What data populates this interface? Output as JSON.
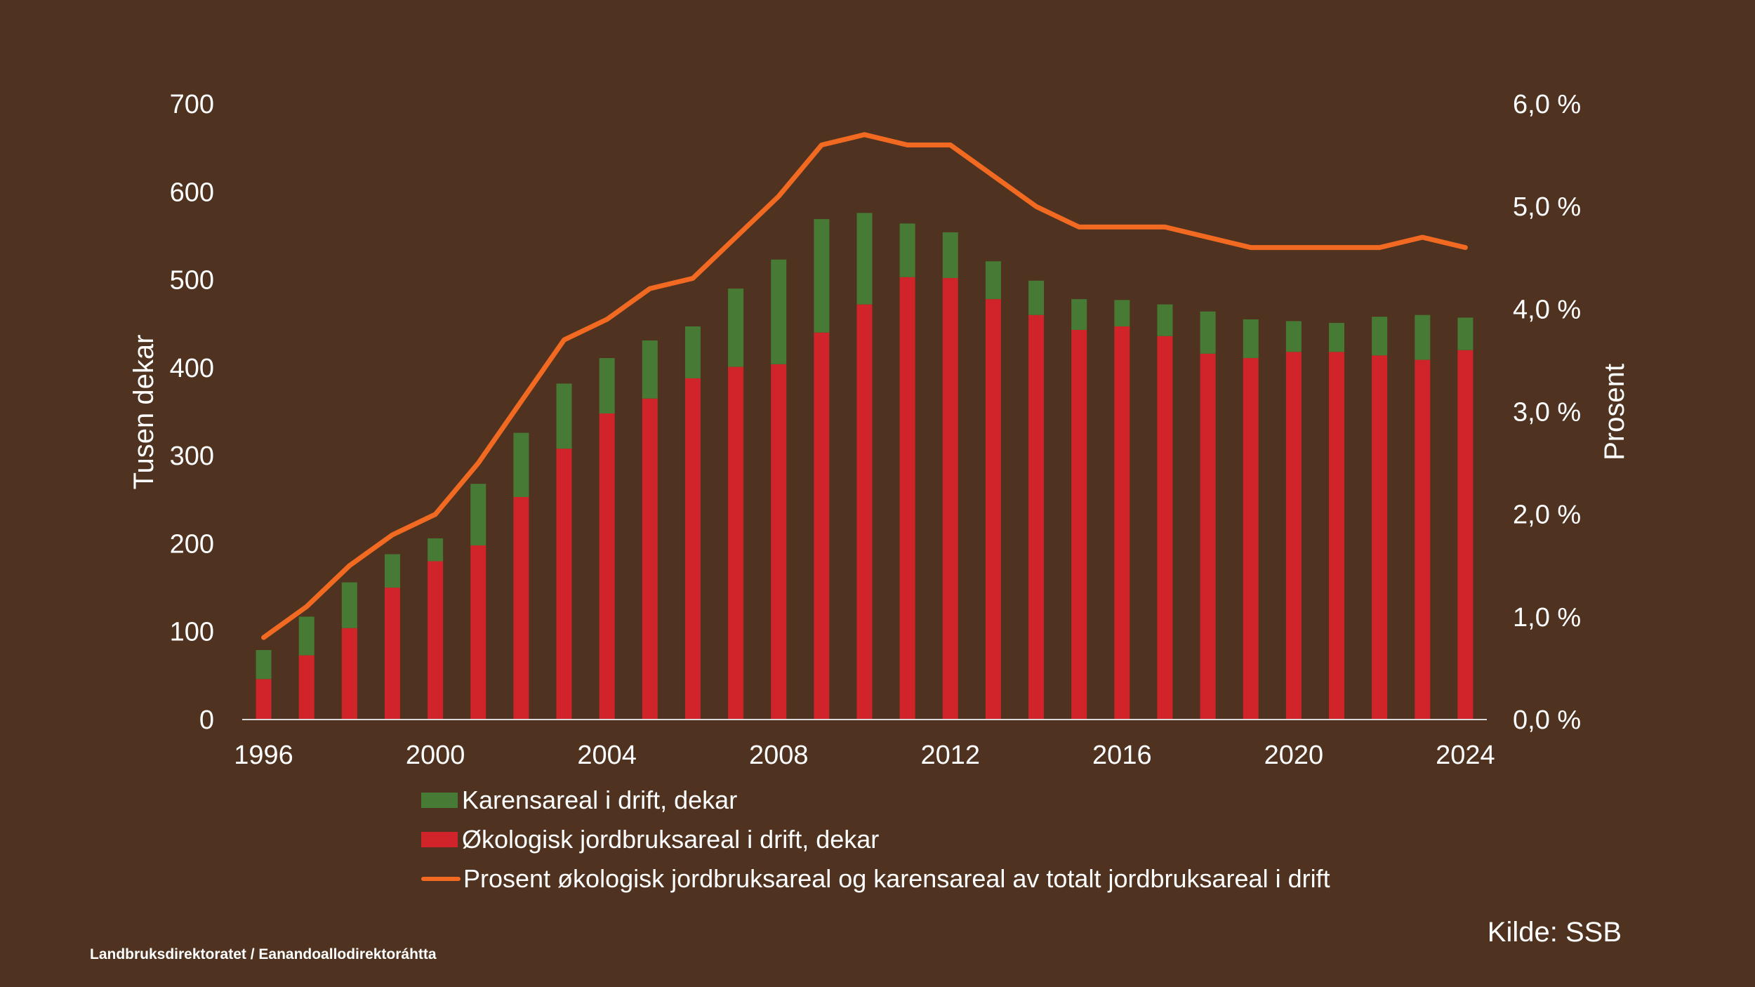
{
  "chart_data": {
    "type": "bar",
    "stacked": true,
    "categories": [
      "1996",
      "1997",
      "1998",
      "1999",
      "2000",
      "2001",
      "2002",
      "2003",
      "2004",
      "2005",
      "2006",
      "2007",
      "2008",
      "2009",
      "2010",
      "2011",
      "2012",
      "2013",
      "2014",
      "2015",
      "2016",
      "2017",
      "2018",
      "2019",
      "2020",
      "2021",
      "2022",
      "2023",
      "2024"
    ],
    "x_tick_labels": [
      "1996",
      "2000",
      "2004",
      "2008",
      "2012",
      "2016",
      "2020",
      "2024"
    ],
    "series": [
      {
        "name": "Økologisk jordbruksareal i drift, dekar",
        "kind": "bar",
        "axis": "left",
        "color": "#D1232A",
        "values": [
          46,
          73,
          104,
          150,
          180,
          198,
          253,
          308,
          348,
          365,
          388,
          401,
          404,
          440,
          472,
          503,
          502,
          478,
          460,
          443,
          447,
          436,
          416,
          411,
          418,
          418,
          414,
          409,
          420
        ]
      },
      {
        "name": "Karensareal i drift, dekar",
        "kind": "bar",
        "axis": "left",
        "color": "#477A35",
        "values": [
          33,
          44,
          52,
          38,
          26,
          70,
          73,
          74,
          63,
          66,
          59,
          89,
          119,
          129,
          104,
          61,
          52,
          43,
          39,
          35,
          30,
          36,
          48,
          44,
          35,
          33,
          44,
          51,
          37
        ]
      },
      {
        "name": "Prosent økologisk jordbruksareal og karensareal av totalt jordbruksareal i drift",
        "kind": "line",
        "axis": "right",
        "color": "#F26A21",
        "values": [
          0.8,
          1.1,
          1.5,
          1.8,
          2.0,
          2.5,
          3.1,
          3.7,
          3.9,
          4.2,
          4.3,
          4.7,
          5.1,
          5.6,
          5.7,
          5.6,
          5.6,
          5.3,
          5.0,
          4.8,
          4.8,
          4.8,
          4.7,
          4.6,
          4.6,
          4.6,
          4.6,
          4.7,
          4.6
        ]
      }
    ],
    "y_left": {
      "label": "Tusen dekar",
      "min": 0,
      "max": 700,
      "step": 100,
      "tick_labels": [
        "0",
        "100",
        "200",
        "300",
        "400",
        "500",
        "600",
        "700"
      ]
    },
    "y_right": {
      "label": "Prosent",
      "min": 0,
      "max": 6,
      "step": 1,
      "tick_labels": [
        "0,0 %",
        "1,0 %",
        "2,0 %",
        "3,0 %",
        "4,0 %",
        "5,0 %",
        "6,0 %"
      ]
    },
    "grid": false,
    "legend_position": "bottom"
  },
  "legend": {
    "items": [
      {
        "label": "Karensareal i drift, dekar",
        "color": "#477A35",
        "kind": "bar"
      },
      {
        "label": "Økologisk jordbruksareal i drift, dekar",
        "color": "#D1232A",
        "kind": "bar"
      },
      {
        "label": "Prosent økologisk jordbruksareal og karensareal av totalt jordbruksareal i drift",
        "color": "#F26A21",
        "kind": "line"
      }
    ]
  },
  "footer": {
    "organization": "Landbruksdirektoratet / Eanandoallodirektoráhtta",
    "source": "Kilde: SSB"
  },
  "colors": {
    "background": "#4F3320",
    "axis": "#ffffff",
    "text": "#ffffff"
  }
}
